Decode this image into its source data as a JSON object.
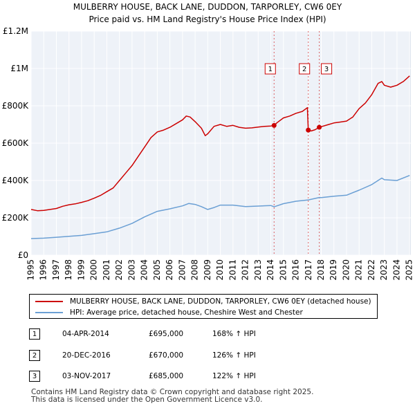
{
  "chart_data": {
    "type": "line",
    "title": "MULBERRY HOUSE, BACK LANE, DUDDON, TARPORLEY, CW6 0EY",
    "subtitle": "Price paid vs. HM Land Registry's House Price Index (HPI)",
    "xlabel": "",
    "ylabel": "",
    "xlim": [
      1995,
      2025.1
    ],
    "ylim": [
      0,
      1200000
    ],
    "y_ticks": [
      {
        "value": 0,
        "label": "£0"
      },
      {
        "value": 200000,
        "label": "£200K"
      },
      {
        "value": 400000,
        "label": "£400K"
      },
      {
        "value": 600000,
        "label": "£600K"
      },
      {
        "value": 800000,
        "label": "£800K"
      },
      {
        "value": 1000000,
        "label": "£1M"
      },
      {
        "value": 1200000,
        "label": "£1.2M"
      }
    ],
    "x_ticks": [
      "1995",
      "1996",
      "1997",
      "1998",
      "1999",
      "2000",
      "2001",
      "2002",
      "2003",
      "2004",
      "2005",
      "2006",
      "2007",
      "2008",
      "2009",
      "2010",
      "2011",
      "2012",
      "2013",
      "2014",
      "2015",
      "2016",
      "2017",
      "2018",
      "2019",
      "2020",
      "2021",
      "2022",
      "2023",
      "2024",
      "2025"
    ],
    "grid": true,
    "series": [
      {
        "name": "MULBERRY HOUSE, BACK LANE, DUDDON, TARPORLEY, CW6 0EY (detached house)",
        "color": "#cc0000",
        "points": [
          [
            1995,
            245000
          ],
          [
            1995.5,
            238000
          ],
          [
            1996,
            240000
          ],
          [
            1996.5,
            245000
          ],
          [
            1997,
            250000
          ],
          [
            1997.5,
            262000
          ],
          [
            1998,
            270000
          ],
          [
            1998.5,
            275000
          ],
          [
            1999,
            283000
          ],
          [
            1999.5,
            292000
          ],
          [
            2000,
            305000
          ],
          [
            2000.5,
            320000
          ],
          [
            2001,
            340000
          ],
          [
            2001.5,
            360000
          ],
          [
            2002,
            400000
          ],
          [
            2002.5,
            440000
          ],
          [
            2003,
            480000
          ],
          [
            2003.5,
            530000
          ],
          [
            2004,
            580000
          ],
          [
            2004.5,
            630000
          ],
          [
            2005,
            660000
          ],
          [
            2005.5,
            670000
          ],
          [
            2006,
            685000
          ],
          [
            2006.5,
            705000
          ],
          [
            2007,
            725000
          ],
          [
            2007.3,
            745000
          ],
          [
            2007.6,
            740000
          ],
          [
            2008,
            715000
          ],
          [
            2008.5,
            680000
          ],
          [
            2008.8,
            640000
          ],
          [
            2009,
            650000
          ],
          [
            2009.5,
            690000
          ],
          [
            2010,
            700000
          ],
          [
            2010.5,
            690000
          ],
          [
            2011,
            695000
          ],
          [
            2011.5,
            685000
          ],
          [
            2012,
            680000
          ],
          [
            2012.5,
            682000
          ],
          [
            2013,
            686000
          ],
          [
            2013.5,
            690000
          ],
          [
            2014,
            692000
          ],
          [
            2014.26,
            695000
          ],
          [
            2014.5,
            710000
          ],
          [
            2015,
            735000
          ],
          [
            2015.5,
            745000
          ],
          [
            2016,
            760000
          ],
          [
            2016.5,
            770000
          ],
          [
            2016.9,
            790000
          ],
          [
            2016.97,
            670000
          ],
          [
            2017.2,
            665000
          ],
          [
            2017.5,
            672000
          ],
          [
            2017.84,
            685000
          ],
          [
            2018,
            688000
          ],
          [
            2018.5,
            698000
          ],
          [
            2019,
            708000
          ],
          [
            2019.5,
            713000
          ],
          [
            2020,
            718000
          ],
          [
            2020.5,
            740000
          ],
          [
            2021,
            785000
          ],
          [
            2021.5,
            815000
          ],
          [
            2022,
            860000
          ],
          [
            2022.5,
            920000
          ],
          [
            2022.8,
            930000
          ],
          [
            2023,
            910000
          ],
          [
            2023.5,
            900000
          ],
          [
            2024,
            910000
          ],
          [
            2024.5,
            930000
          ],
          [
            2025,
            960000
          ]
        ]
      },
      {
        "name": "HPI: Average price, detached house, Cheshire West and Chester",
        "color": "#6a9fd4",
        "points": [
          [
            1995,
            89000
          ],
          [
            1996,
            91000
          ],
          [
            1997,
            96000
          ],
          [
            1998,
            101000
          ],
          [
            1999,
            106000
          ],
          [
            2000,
            115000
          ],
          [
            2001,
            125000
          ],
          [
            2002,
            145000
          ],
          [
            2003,
            170000
          ],
          [
            2004,
            205000
          ],
          [
            2005,
            235000
          ],
          [
            2006,
            248000
          ],
          [
            2007,
            264000
          ],
          [
            2007.5,
            277000
          ],
          [
            2008,
            272000
          ],
          [
            2008.5,
            260000
          ],
          [
            2009,
            245000
          ],
          [
            2009.5,
            255000
          ],
          [
            2010,
            268000
          ],
          [
            2011,
            268000
          ],
          [
            2012,
            260000
          ],
          [
            2013,
            263000
          ],
          [
            2014,
            266000
          ],
          [
            2014.26,
            259000
          ],
          [
            2015,
            276000
          ],
          [
            2016,
            289000
          ],
          [
            2016.97,
            296000
          ],
          [
            2017.84,
            309000
          ],
          [
            2018,
            308000
          ],
          [
            2019,
            316000
          ],
          [
            2020,
            321000
          ],
          [
            2021,
            348000
          ],
          [
            2022,
            378000
          ],
          [
            2022.8,
            413000
          ],
          [
            2023,
            404000
          ],
          [
            2024,
            400000
          ],
          [
            2025,
            427000
          ]
        ]
      }
    ],
    "sales": [
      {
        "num": "1",
        "date": "04-APR-2014",
        "price": "£695,000",
        "hpi": "168% ↑ HPI",
        "x": 2014.26,
        "y": 695000
      },
      {
        "num": "2",
        "date": "20-DEC-2016",
        "price": "£670,000",
        "hpi": "126% ↑ HPI",
        "x": 2016.97,
        "y": 670000
      },
      {
        "num": "3",
        "date": "03-NOV-2017",
        "price": "£685,000",
        "hpi": "122% ↑ HPI",
        "x": 2017.84,
        "y": 685000
      }
    ]
  },
  "legend": {
    "property_label": "MULBERRY HOUSE, BACK LANE, DUDDON, TARPORLEY, CW6 0EY (detached house)",
    "property_color": "#cc0000",
    "hpi_label": "HPI: Average price, detached house, Cheshire West and Chester",
    "hpi_color": "#6a9fd4"
  },
  "footer": {
    "line1": "Contains HM Land Registry data © Crown copyright and database right 2025.",
    "line2": "This data is licensed under the Open Government Licence v3.0."
  }
}
